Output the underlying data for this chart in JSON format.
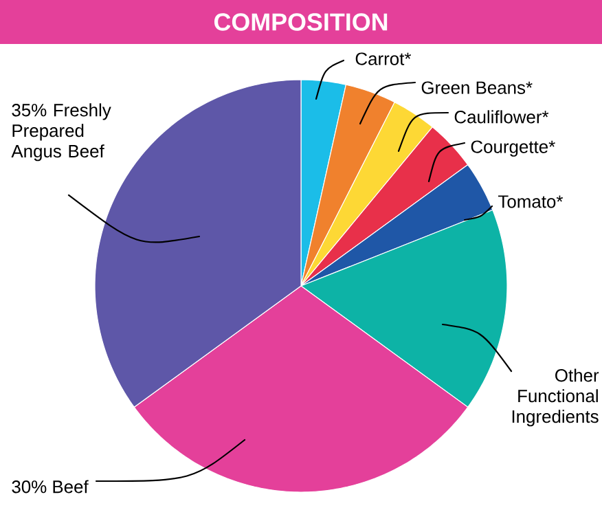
{
  "chart_data": {
    "type": "pie",
    "title": "COMPOSITION",
    "categories": [
      "Carrot*",
      "Green Beans*",
      "Cauliflower*",
      "Courgette*",
      "Tomato*",
      "Other Functional Ingredients",
      "30% Beef",
      "35% Freshly Prepared Angus Beef"
    ],
    "values": [
      3.5,
      4,
      3.5,
      4,
      4,
      16,
      30,
      35
    ],
    "colors": [
      "#1bbde8",
      "#f0812d",
      "#fdd835",
      "#e8304a",
      "#1f57a7",
      "#0db3a6",
      "#e4409a",
      "#5e57a8"
    ]
  }
}
